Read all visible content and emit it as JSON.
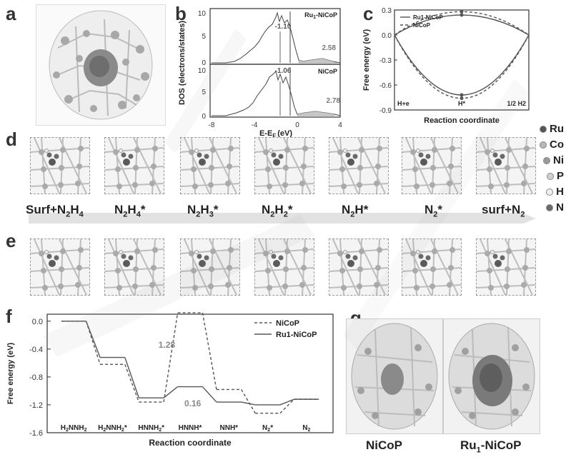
{
  "panels": {
    "a": "a",
    "b": "b",
    "c": "c",
    "d": "d",
    "e": "e",
    "f": "f",
    "g": "g"
  },
  "panel_b": {
    "y_label": "DOS (electrons/states)",
    "x_label": "E-E",
    "x_label_sub": "F",
    "x_label_unit": "(eV)",
    "top_name": "Ru",
    "top_name_sub": "1",
    "top_name_rest": "-NiCoP",
    "bottom_name": "NiCoP",
    "top_center": "-1.10",
    "top_right": "2.58",
    "bottom_center": "-1.06",
    "bottom_right": "2.78",
    "x_ticks": [
      "-8",
      "-4",
      "0",
      "4"
    ],
    "y_ticks_top": [
      "0",
      "5",
      "10"
    ],
    "y_ticks_bottom": [
      "0",
      "5",
      "10"
    ]
  },
  "panel_d": {
    "steps": [
      {
        "main": "Surf+N",
        "sub": "2",
        "main2": "H",
        "sub2": "4",
        "tail": ""
      },
      {
        "main": "N",
        "sub": "2",
        "main2": "H",
        "sub2": "4",
        "tail": "*"
      },
      {
        "main": "N",
        "sub": "2",
        "main2": "H",
        "sub2": "3",
        "tail": "*"
      },
      {
        "main": "N",
        "sub": "2",
        "main2": "H",
        "sub2": "2",
        "tail": "*"
      },
      {
        "main": "N",
        "sub": "2",
        "main2": "H",
        "sub2": "",
        "tail": "*"
      },
      {
        "main": "N",
        "sub": "2",
        "main2": "",
        "sub2": "",
        "tail": "*"
      },
      {
        "main": "surf+N",
        "sub": "2",
        "main2": "",
        "sub2": "",
        "tail": ""
      }
    ],
    "legend": [
      {
        "label": "Ru",
        "color": "#555555"
      },
      {
        "label": "Co",
        "color": "#b8b8b8"
      },
      {
        "label": "Ni",
        "color": "#9a9a9a"
      },
      {
        "label": "P",
        "color": "#d0d0d0"
      },
      {
        "label": "H",
        "color": "#efefef"
      },
      {
        "label": "N",
        "color": "#6a6a6a"
      }
    ]
  },
  "panel_g": {
    "left": "NiCoP",
    "right_main": "Ru",
    "right_sub": "1",
    "right_rest": "-NiCoP"
  },
  "chart_data": [
    {
      "type": "line",
      "panel": "c",
      "title": "",
      "xlabel": "Reaction coordinate",
      "ylabel": "Free energy (eV)",
      "categories": [
        "H++e-",
        "H*",
        "1/2 H2"
      ],
      "x_tick_labels": [
        "H",
        "H*",
        "1/2 H"
      ],
      "series": [
        {
          "name": "Ru1-NiCoP",
          "style": "solid",
          "upper_peak": 0.24,
          "lower_trough": -0.72,
          "values": [
            0.0,
            -0.72,
            0.0
          ]
        },
        {
          "name": "NiCoP",
          "style": "dashed",
          "upper_peak": 0.28,
          "lower_trough": -0.76,
          "values": [
            0.0,
            -0.76,
            0.0
          ]
        }
      ],
      "legend": [
        "Ru1-NiCoP",
        "NiCoP"
      ],
      "legend_position": "top-left",
      "ylim": [
        -0.9,
        0.3
      ],
      "y_ticks": [
        "0.3",
        "0.0",
        "-0.3",
        "-0.6",
        "-0.9"
      ]
    },
    {
      "type": "line",
      "panel": "f",
      "title": "",
      "xlabel": "Reaction coordinate",
      "ylabel": "Free energy (eV)",
      "categories": [
        "H2NNH2",
        "H2NNH2*",
        "HNNH2*",
        "HNNH*",
        "NNH*",
        "N2*",
        "N2"
      ],
      "series": [
        {
          "name": "NiCoP",
          "style": "dashed",
          "values": [
            0.0,
            -0.62,
            -1.16,
            0.12,
            -0.98,
            -1.32,
            -1.12
          ]
        },
        {
          "name": "Ru1-NiCoP",
          "style": "solid",
          "values": [
            0.0,
            -0.52,
            -1.1,
            -0.94,
            -1.16,
            -1.2,
            -1.12
          ]
        }
      ],
      "annotations": [
        "1.28",
        "0.16"
      ],
      "legend": [
        "NiCoP",
        "Ru1-NiCoP"
      ],
      "legend_position": "top-right",
      "ylim": [
        -1.6,
        0.1
      ],
      "y_ticks": [
        "0.0",
        "-0.4",
        "-0.8",
        "-1.2",
        "-1.6"
      ],
      "grid": false
    }
  ]
}
